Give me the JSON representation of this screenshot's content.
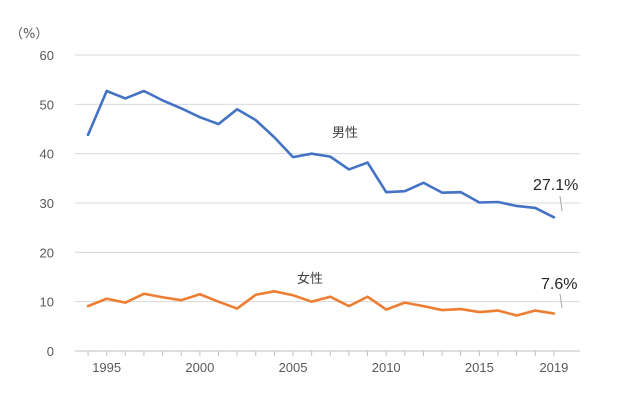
{
  "chart_data": {
    "type": "line",
    "y_unit_label": "（%）",
    "x_tick_labels": [
      "1995",
      "2000",
      "2005",
      "2010",
      "2015",
      "2019"
    ],
    "y_tick_labels": [
      "0",
      "10",
      "20",
      "30",
      "40",
      "50",
      "60"
    ],
    "xlim": [
      1993.3,
      2020.4
    ],
    "ylim": [
      0,
      60
    ],
    "grid": true,
    "legend": "none",
    "colors": {
      "male": "#4472C4",
      "female": "#ED7D31",
      "grid": "#D9D9D9",
      "axis": "#BFBFBF"
    },
    "x": [
      1994,
      1995,
      1996,
      1997,
      1998,
      1999,
      2000,
      2001,
      2002,
      2003,
      2004,
      2005,
      2006,
      2007,
      2008,
      2009,
      2010,
      2011,
      2012,
      2013,
      2014,
      2015,
      2016,
      2017,
      2018,
      2019
    ],
    "series": [
      {
        "key": "male",
        "name": "男性",
        "end_label": "27.1%",
        "values": [
          43.8,
          52.7,
          51.2,
          52.7,
          50.8,
          49.2,
          47.4,
          46.0,
          49.0,
          46.8,
          43.3,
          39.3,
          40.0,
          39.4,
          36.8,
          38.2,
          32.2,
          32.4,
          34.1,
          32.1,
          32.2,
          30.1,
          30.2,
          29.4,
          29.0,
          27.1
        ]
      },
      {
        "key": "female",
        "name": "女性",
        "end_label": "7.6%",
        "values": [
          9.1,
          10.6,
          9.8,
          11.6,
          10.9,
          10.3,
          11.5,
          10.0,
          8.6,
          11.4,
          12.1,
          11.3,
          10.0,
          11.0,
          9.1,
          11.0,
          8.4,
          9.8,
          9.1,
          8.3,
          8.5,
          7.9,
          8.2,
          7.2,
          8.2,
          7.6
        ]
      }
    ]
  }
}
